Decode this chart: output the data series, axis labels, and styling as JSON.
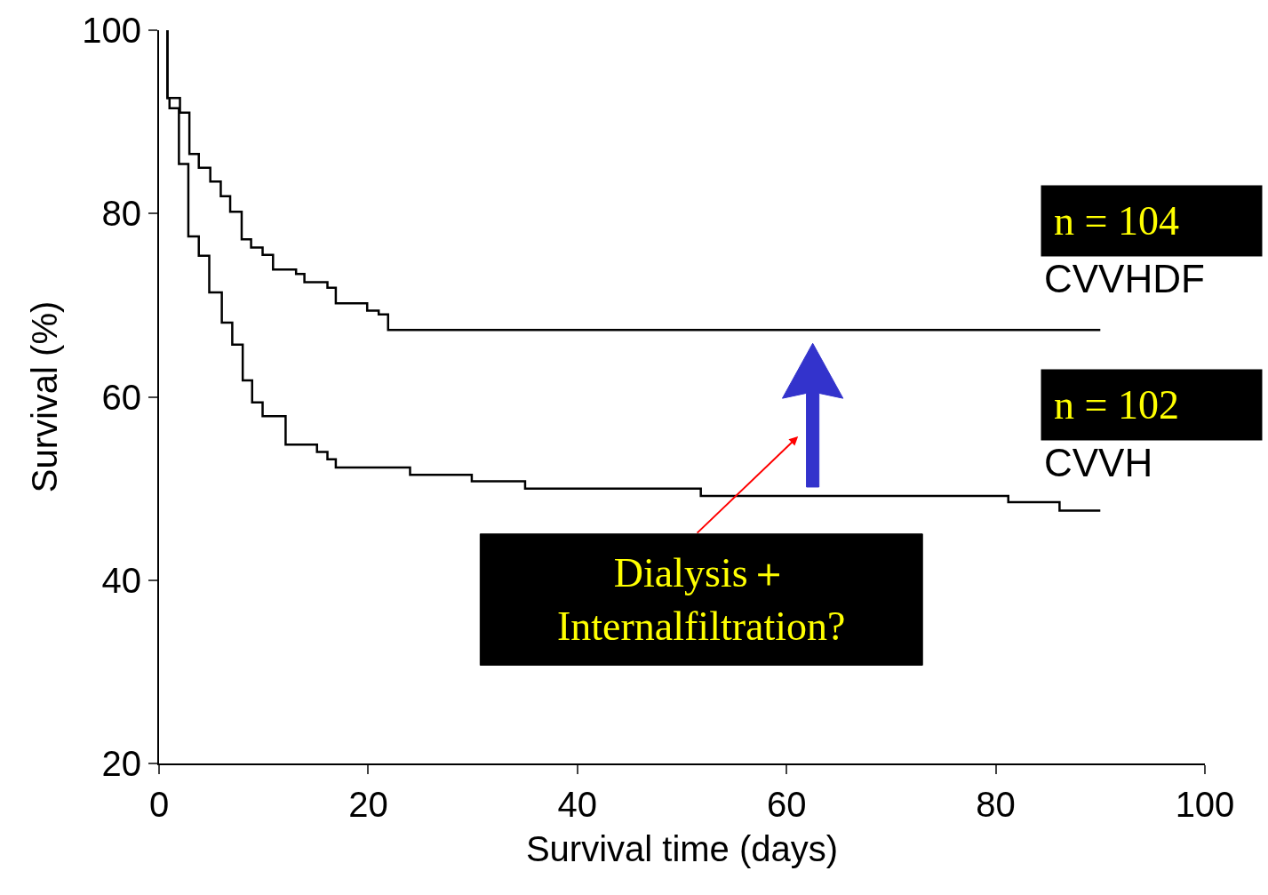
{
  "chart_data": {
    "type": "step",
    "xlabel": "Survival time (days)",
    "ylabel": "Survival (%)",
    "xlim": [
      0,
      100
    ],
    "xticks": [
      0,
      20,
      40,
      60,
      80,
      100
    ],
    "ylim": [
      20,
      100
    ],
    "yticks": [
      20,
      40,
      60,
      80,
      100
    ],
    "legend": false,
    "marker": "none",
    "line_style": "solid",
    "series": [
      {
        "name": "CVVHDF",
        "color": "#000000",
        "x": [
          0.8,
          0.8,
          2.0,
          2.9,
          3.8,
          4.9,
          5.9,
          6.8,
          7.9,
          8.8,
          9.9,
          10.9,
          13.1,
          13.9,
          16.1,
          16.9,
          19.9,
          21.0,
          21.9,
          90
        ],
        "values": [
          100,
          92.6,
          91.0,
          86.5,
          85.0,
          83.5,
          81.9,
          80.2,
          77.2,
          76.3,
          75.5,
          73.9,
          73.4,
          72.5,
          71.9,
          70.2,
          69.4,
          69.0,
          67.3,
          67.3
        ]
      },
      {
        "name": "CVVH",
        "color": "#000000",
        "x": [
          0.8,
          0.8,
          1.0,
          1.9,
          2.8,
          3.8,
          4.8,
          6.0,
          7.0,
          8.0,
          8.9,
          9.9,
          12.1,
          15.1,
          16.1,
          16.9,
          24.0,
          29.9,
          35.0,
          51.8,
          81.2,
          86.1,
          90
        ],
        "values": [
          100,
          92.6,
          91.5,
          85.4,
          77.5,
          75.4,
          71.4,
          68.1,
          65.7,
          61.8,
          59.4,
          57.9,
          54.8,
          54.0,
          53.2,
          52.3,
          51.5,
          50.8,
          50.0,
          49.2,
          48.5,
          47.6,
          47.6
        ]
      }
    ],
    "annotations": [
      "n = 104",
      "n = 102",
      "Dialysis＋\nInternalfiltration?"
    ]
  }
}
